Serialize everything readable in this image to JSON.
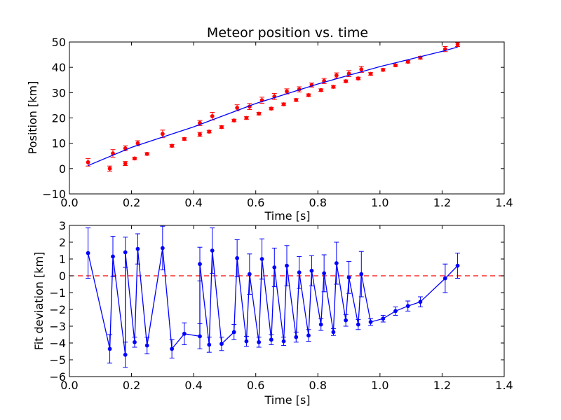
{
  "chart_data": [
    {
      "type": "scatter",
      "title": "Meteor position vs. time",
      "xlabel": "Time [s]",
      "ylabel": "Position [km]",
      "xlim": [
        0.0,
        1.4
      ],
      "ylim": [
        -10,
        50
      ],
      "xticks": [
        "0.0",
        "0.2",
        "0.4",
        "0.6",
        "0.8",
        "1.0",
        "1.2",
        "1.4"
      ],
      "yticks": [
        "−10",
        "0",
        "10",
        "20",
        "30",
        "40",
        "50"
      ],
      "grid": false,
      "series": [
        {
          "kind": "errorbar-points",
          "color": "#ff0000",
          "x": [
            0.06,
            0.13,
            0.14,
            0.18,
            0.18,
            0.21,
            0.22,
            0.25,
            0.3,
            0.33,
            0.37,
            0.42,
            0.42,
            0.45,
            0.46,
            0.49,
            0.53,
            0.54,
            0.57,
            0.58,
            0.61,
            0.62,
            0.65,
            0.66,
            0.69,
            0.7,
            0.73,
            0.74,
            0.77,
            0.78,
            0.81,
            0.82,
            0.85,
            0.86,
            0.89,
            0.9,
            0.93,
            0.94,
            0.97,
            1.01,
            1.05,
            1.09,
            1.13,
            1.21,
            1.25
          ],
          "y": [
            2.5,
            0.0,
            6.0,
            2.0,
            8.0,
            4.0,
            10.0,
            5.8,
            13.7,
            9.0,
            11.7,
            13.5,
            18.0,
            14.6,
            20.7,
            16.4,
            19.0,
            24.0,
            20.0,
            24.5,
            21.7,
            27.0,
            23.7,
            28.5,
            25.4,
            30.5,
            27.1,
            31.3,
            29.0,
            33.0,
            31.0,
            34.6,
            32.3,
            36.8,
            34.5,
            37.5,
            35.6,
            39.2,
            37.4,
            39.0,
            40.8,
            42.2,
            43.8,
            47.2,
            49.0
          ],
          "yerr": [
            1.5,
            1.0,
            1.5,
            0.8,
            1.0,
            0.5,
            1.0,
            0.5,
            1.5,
            0.5,
            0.5,
            0.8,
            1.0,
            0.5,
            1.5,
            0.5,
            0.5,
            1.2,
            0.5,
            1.2,
            0.5,
            1.2,
            0.5,
            1.2,
            0.5,
            1.0,
            0.5,
            1.0,
            0.5,
            0.8,
            0.5,
            1.0,
            0.5,
            1.0,
            0.5,
            1.2,
            0.5,
            1.2,
            0.5,
            0.5,
            0.5,
            0.5,
            0.5,
            1.0,
            0.8
          ]
        },
        {
          "kind": "fit-line",
          "color": "#0000ff",
          "x": [
            0.06,
            0.2,
            0.4,
            0.6,
            0.8,
            1.0,
            1.2,
            1.25
          ],
          "y": [
            1.2,
            8.4,
            16.5,
            25.7,
            33.4,
            40.3,
            46.3,
            48.0
          ]
        }
      ]
    },
    {
      "type": "line",
      "xlabel": "Time [s]",
      "ylabel": "Fit deviation [km]",
      "xlim": [
        0.0,
        1.4
      ],
      "ylim": [
        -6,
        3
      ],
      "xticks": [
        "0.0",
        "0.2",
        "0.4",
        "0.6",
        "0.8",
        "1.0",
        "1.2",
        "1.4"
      ],
      "yticks": [
        "−6",
        "−5",
        "−4",
        "−3",
        "−2",
        "−1",
        "0",
        "1",
        "2",
        "3"
      ],
      "grid": false,
      "zero_line": {
        "y": 0,
        "color": "#ff0000",
        "style": "dashed"
      },
      "series": [
        {
          "kind": "errorbar-line",
          "color": "#0000ff",
          "x": [
            0.06,
            0.13,
            0.14,
            0.18,
            0.18,
            0.21,
            0.22,
            0.25,
            0.3,
            0.33,
            0.37,
            0.42,
            0.42,
            0.45,
            0.46,
            0.49,
            0.53,
            0.54,
            0.57,
            0.58,
            0.61,
            0.62,
            0.65,
            0.66,
            0.69,
            0.7,
            0.73,
            0.74,
            0.77,
            0.78,
            0.81,
            0.82,
            0.85,
            0.86,
            0.89,
            0.9,
            0.93,
            0.94,
            0.97,
            1.01,
            1.05,
            1.09,
            1.13,
            1.21,
            1.25
          ],
          "y": [
            1.35,
            -4.35,
            1.15,
            -4.7,
            1.4,
            -3.95,
            1.6,
            -4.15,
            1.65,
            -4.35,
            -3.45,
            -3.6,
            0.7,
            -4.1,
            1.5,
            -4.05,
            -3.35,
            1.05,
            -3.9,
            0.1,
            -3.95,
            1.0,
            -3.8,
            0.5,
            -3.9,
            0.6,
            -3.65,
            0.2,
            -3.55,
            0.3,
            -2.9,
            0.15,
            -3.35,
            0.75,
            -2.65,
            -0.1,
            -2.9,
            0.1,
            -2.75,
            -2.55,
            -2.1,
            -1.8,
            -1.55,
            -0.15,
            0.6
          ],
          "yerr": [
            1.5,
            0.85,
            1.2,
            0.75,
            0.9,
            0.3,
            0.9,
            0.5,
            1.3,
            0.55,
            0.65,
            0.75,
            1.0,
            0.45,
            1.35,
            0.4,
            0.45,
            1.1,
            0.3,
            1.2,
            0.3,
            1.2,
            0.3,
            1.15,
            0.25,
            1.2,
            0.3,
            0.95,
            0.35,
            0.9,
            0.35,
            1.1,
            0.2,
            1.25,
            0.35,
            0.95,
            0.3,
            1.35,
            0.2,
            0.2,
            0.25,
            0.3,
            0.3,
            0.85,
            0.75
          ]
        }
      ]
    }
  ]
}
